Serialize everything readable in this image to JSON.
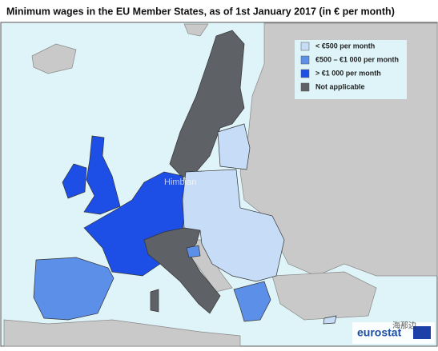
{
  "title": "Minimum wages in the EU Member States, as of 1st January 2017 (in € per month)",
  "legend": [
    {
      "label": "< €500 per month",
      "color": "#c6dcf7"
    },
    {
      "label": "€500 – €1 000 per month",
      "color": "#5b8fe8"
    },
    {
      "label": "> €1 000 per month",
      "color": "#1d4ee6"
    },
    {
      "label": "Not applicable",
      "color": "#5e6166"
    }
  ],
  "logo": "eurostat",
  "watermark": "Himbian",
  "watermark_cn": "海那边"
}
